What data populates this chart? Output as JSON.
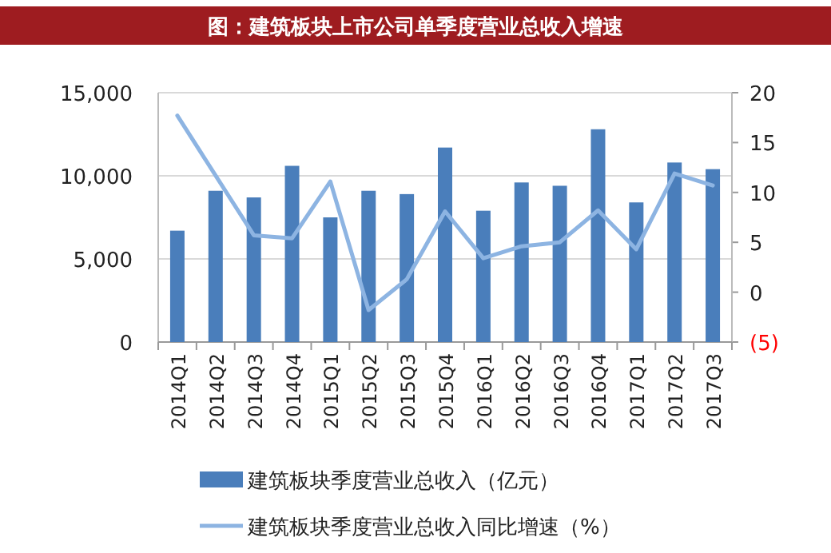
{
  "chart_data": {
    "type": "bar",
    "title": "图：建筑板块上市公司单季度营业总收入增速",
    "categories": [
      "2014Q1",
      "2014Q2",
      "2014Q3",
      "2014Q4",
      "2015Q1",
      "2015Q2",
      "2015Q3",
      "2015Q4",
      "2016Q1",
      "2016Q2",
      "2016Q3",
      "2016Q4",
      "2017Q1",
      "2017Q2",
      "2017Q3"
    ],
    "series": [
      {
        "name": "建筑板块季度营业总收入（亿元）",
        "color": "#4a7ebb",
        "values": [
          6700,
          9100,
          8700,
          10600,
          7500,
          9100,
          8900,
          11700,
          7900,
          9600,
          9400,
          12800,
          8400,
          10800,
          10400
        ]
      },
      {
        "name": "建筑板块季度营业总收入同比增速（%）",
        "type": "line",
        "axis": "y2",
        "color": "#8db4e2",
        "values": [
          17.7,
          11.7,
          5.7,
          5.4,
          11.1,
          -1.8,
          1.3,
          8.1,
          3.4,
          4.6,
          5.0,
          8.2,
          4.3,
          11.9,
          10.7
        ]
      }
    ],
    "ylim": [
      0,
      15000
    ],
    "yticks": [
      0,
      {
        "value": 5000,
        "label": "5,000"
      },
      {
        "value": 10000,
        "label": "10,000"
      },
      {
        "value": 15000,
        "label": "15,000"
      }
    ],
    "y2lim": [
      -5,
      20
    ],
    "y2ticks": [
      {
        "value": -5,
        "label": "(5)"
      },
      0,
      5,
      10,
      15,
      20
    ],
    "grid": "y",
    "legend": "bottom",
    "marker": "none",
    "line_style": "solid"
  }
}
